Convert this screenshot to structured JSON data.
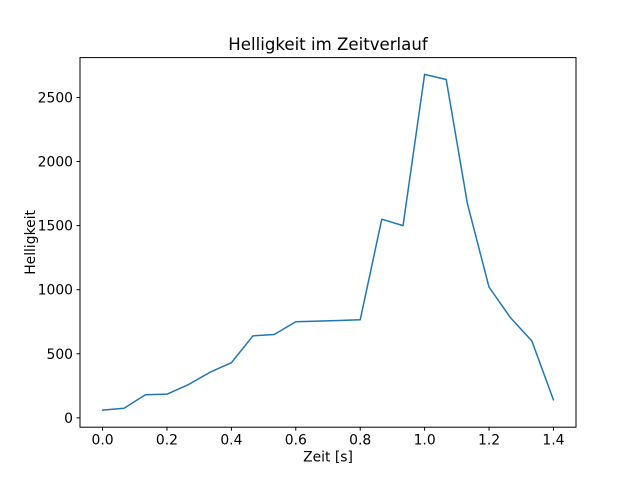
{
  "figure": {
    "background": "#ffffff",
    "text_color": "#000000",
    "spine_color": "#000000"
  },
  "chart_data": {
    "type": "line",
    "title": "Helligkeit im Zeitverlauf",
    "xlabel": "Zeit [s]",
    "ylabel": "Helligkeit",
    "line_color": "#1f77b4",
    "line_width": 1.5,
    "grid": false,
    "legend_position": "none",
    "xlim": [
      -0.07,
      1.47
    ],
    "ylim": [
      -73,
      2811
    ],
    "x_ticks": [
      0.0,
      0.2,
      0.4,
      0.6,
      0.8,
      1.0,
      1.2,
      1.4
    ],
    "y_ticks": [
      0,
      500,
      1000,
      1500,
      2000,
      2500
    ],
    "x": [
      0.0,
      0.067,
      0.133,
      0.2,
      0.267,
      0.333,
      0.4,
      0.467,
      0.533,
      0.6,
      0.667,
      0.733,
      0.8,
      0.867,
      0.933,
      1.0,
      1.067,
      1.133,
      1.2,
      1.267,
      1.333,
      1.4
    ],
    "y": [
      60,
      75,
      180,
      185,
      260,
      355,
      430,
      640,
      650,
      750,
      755,
      760,
      765,
      1550,
      1500,
      2680,
      2640,
      1670,
      1020,
      780,
      600,
      140
    ]
  }
}
